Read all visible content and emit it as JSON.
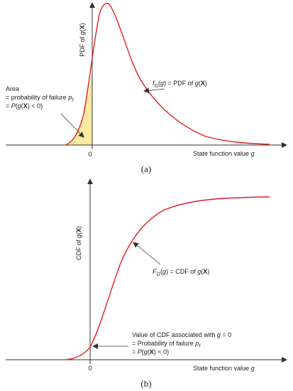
{
  "panel_a": {
    "caption": "(a)",
    "y_axis_label": [
      "PDF of ",
      "g",
      "(",
      "X",
      ")"
    ],
    "x_axis_label": [
      "State function value ",
      "g"
    ],
    "zero_tick": "0",
    "curve_label": [
      "f",
      "G",
      "(",
      "g",
      ") = PDF of ",
      "g",
      "(",
      "X",
      ")"
    ],
    "area_line1": "Area",
    "area_line2": [
      "= probability of failure ",
      "p",
      "f"
    ],
    "area_line3": [
      "= ",
      "P",
      "(",
      "g",
      "(",
      "X",
      ") < 0)"
    ]
  },
  "panel_b": {
    "caption": "(b)",
    "y_axis_label": [
      "CDF of ",
      "g",
      "(",
      "X",
      ")"
    ],
    "x_axis_label": [
      "State function value ",
      "g"
    ],
    "zero_tick": "0",
    "curve_label": [
      "F",
      "G",
      "(",
      "g",
      ") = CDF of ",
      "g",
      "(",
      "X",
      ")"
    ],
    "value_line1": [
      "Value of CDF associated with ",
      "g",
      " = 0"
    ],
    "value_line2": [
      "= Probability of failure ",
      "p",
      "f"
    ],
    "value_line3": [
      "= ",
      "P",
      "(",
      "g",
      "(",
      "X",
      ") < 0)"
    ]
  },
  "colors": {
    "curve": "#e0201e",
    "shade": "#fde9a0",
    "axis": "#333333"
  }
}
